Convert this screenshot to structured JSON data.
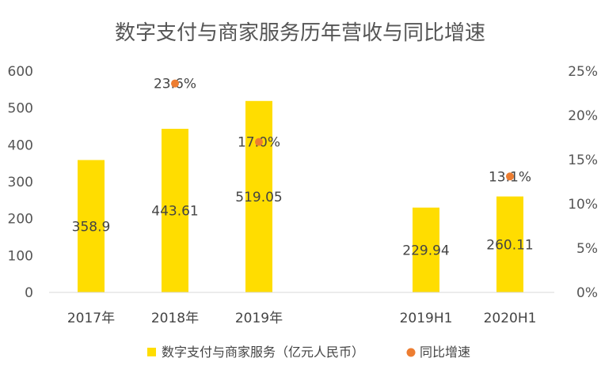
{
  "chart_data": {
    "type": "bar",
    "title": "数字支付与商家服务历年营收与同比增速",
    "categories": [
      "2017年",
      "2018年",
      "2019年",
      "2019H1",
      "2020H1"
    ],
    "series": [
      {
        "name": "数字支付与商家服务（亿元人民币）",
        "type": "bar",
        "axis": "left",
        "color": "#FFDD00",
        "values": [
          358.9,
          443.61,
          519.05,
          229.94,
          260.11
        ],
        "labels": [
          "358.9",
          "443.61",
          "519.05",
          "229.94",
          "260.11"
        ]
      },
      {
        "name": "同比增速",
        "type": "scatter",
        "axis": "right",
        "color": "#ED7D31",
        "values": [
          null,
          23.6,
          17.0,
          null,
          13.1
        ],
        "labels": [
          "",
          "23.6%",
          "17.0%",
          "",
          "13.1%"
        ]
      }
    ],
    "y_left": {
      "min": 0,
      "max": 600,
      "ticks": [
        "0",
        "100",
        "200",
        "300",
        "400",
        "500",
        "600"
      ]
    },
    "y_right": {
      "min": 0,
      "max": 25,
      "ticks": [
        "0%",
        "5%",
        "10%",
        "15%",
        "20%",
        "25%"
      ]
    },
    "grid": false,
    "legend_position": "bottom"
  }
}
